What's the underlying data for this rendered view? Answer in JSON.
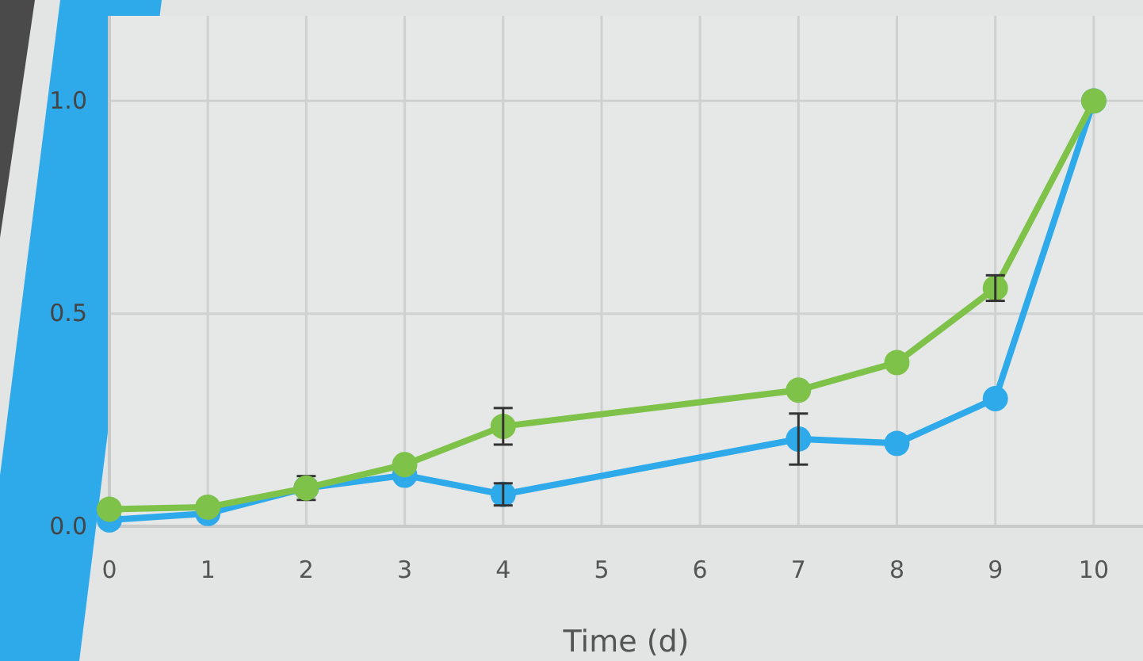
{
  "chart_data": {
    "type": "line",
    "xlabel": "Time (d)",
    "x": [
      0,
      1,
      2,
      3,
      4,
      7,
      8,
      9,
      10
    ],
    "series": [
      {
        "color": "#2eaaeb",
        "values": [
          0.015,
          0.03,
          0.09,
          0.12,
          0.075,
          0.205,
          0.195,
          0.3,
          1.0
        ],
        "errors": [
          null,
          null,
          0.028,
          null,
          0.026,
          0.06,
          null,
          null,
          null
        ]
      },
      {
        "color": "#7ec24a",
        "values": [
          0.04,
          0.045,
          0.09,
          0.145,
          0.235,
          0.32,
          0.385,
          0.56,
          1.0
        ],
        "errors": [
          null,
          null,
          null,
          null,
          0.043,
          null,
          null,
          0.03,
          null
        ]
      }
    ],
    "xlim": [
      0,
      10.5
    ],
    "xticks": [
      0,
      1,
      2,
      3,
      4,
      5,
      6,
      7,
      8,
      9,
      10
    ],
    "ylim": [
      0,
      1.2
    ],
    "yticks": [
      {
        "value": 0,
        "label": "0.0"
      },
      0.5,
      {
        "value": 1,
        "label": "1.0"
      }
    ],
    "grid": true,
    "marker": "circle",
    "line_style": "solid"
  }
}
